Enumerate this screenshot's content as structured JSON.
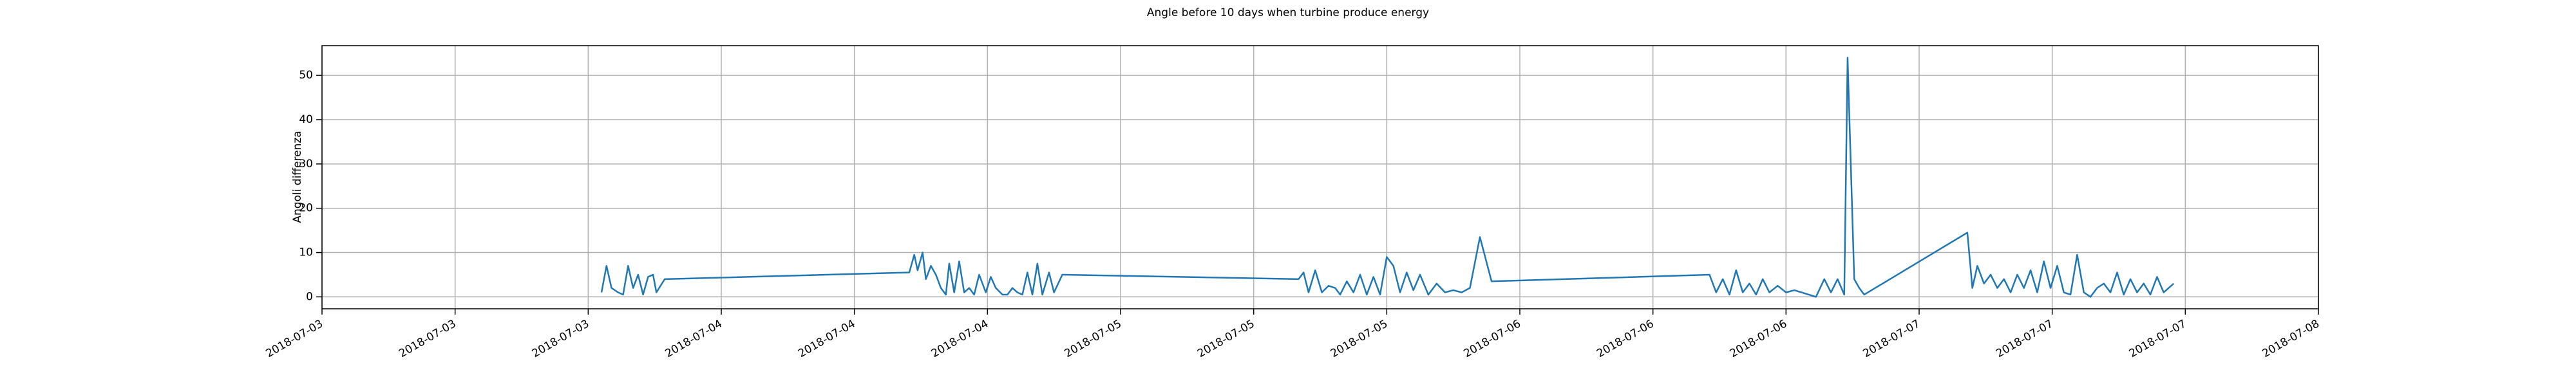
{
  "chart_data": {
    "type": "line",
    "title": "Angle before 10 days when turbine produce energy",
    "y_label": "Angoli differenza",
    "color": "#1f77b4",
    "grid": true,
    "xlim": [
      0,
      120
    ],
    "xticks": [
      {
        "value": 0,
        "label": "2018-07-03"
      },
      {
        "value": 8,
        "label": "2018-07-03"
      },
      {
        "value": 16,
        "label": "2018-07-03"
      },
      {
        "value": 24,
        "label": "2018-07-04"
      },
      {
        "value": 32,
        "label": "2018-07-04"
      },
      {
        "value": 40,
        "label": "2018-07-04"
      },
      {
        "value": 48,
        "label": "2018-07-05"
      },
      {
        "value": 56,
        "label": "2018-07-05"
      },
      {
        "value": 64,
        "label": "2018-07-05"
      },
      {
        "value": 72,
        "label": "2018-07-06"
      },
      {
        "value": 80,
        "label": "2018-07-06"
      },
      {
        "value": 88,
        "label": "2018-07-06"
      },
      {
        "value": 96,
        "label": "2018-07-07"
      },
      {
        "value": 104,
        "label": "2018-07-07"
      },
      {
        "value": 112,
        "label": "2018-07-07"
      },
      {
        "value": 120,
        "label": "2018-07-08"
      }
    ],
    "ylim": [
      -2.7,
      56.7
    ],
    "yticks": [
      0,
      10,
      20,
      30,
      40,
      50
    ],
    "x": [
      16.8,
      17.1,
      17.4,
      17.8,
      18.1,
      18.4,
      18.7,
      19.0,
      19.3,
      19.6,
      19.9,
      20.1,
      20.6,
      35.3,
      35.6,
      35.8,
      36.1,
      36.3,
      36.6,
      36.9,
      37.2,
      37.5,
      37.7,
      38.0,
      38.3,
      38.6,
      38.9,
      39.2,
      39.5,
      39.9,
      40.2,
      40.5,
      40.9,
      41.2,
      41.5,
      41.8,
      42.1,
      42.4,
      42.7,
      43.0,
      43.3,
      43.7,
      44.0,
      44.5,
      58.7,
      59.0,
      59.3,
      59.7,
      60.1,
      60.5,
      60.9,
      61.2,
      61.6,
      62.0,
      62.4,
      62.8,
      63.2,
      63.6,
      64.0,
      64.4,
      64.8,
      65.2,
      65.6,
      66.0,
      66.5,
      67.0,
      67.5,
      68.0,
      68.5,
      69.0,
      69.6,
      70.3,
      83.4,
      83.8,
      84.2,
      84.6,
      85.0,
      85.4,
      85.8,
      86.2,
      86.6,
      87.0,
      87.5,
      88.0,
      88.5,
      89.8,
      90.3,
      90.7,
      91.1,
      91.5,
      91.7,
      92.1,
      92.4,
      92.7,
      98.9,
      99.2,
      99.5,
      99.9,
      100.3,
      100.7,
      101.1,
      101.5,
      101.9,
      102.3,
      102.7,
      103.1,
      103.5,
      103.9,
      104.3,
      104.7,
      105.1,
      105.5,
      105.9,
      106.3,
      106.7,
      107.1,
      107.5,
      107.9,
      108.3,
      108.7,
      109.1,
      109.5,
      109.9,
      110.3,
      110.7,
      111.3
    ],
    "values": [
      1,
      7,
      2,
      1,
      0.5,
      7,
      2,
      5,
      0.5,
      4.5,
      5,
      1,
      4,
      5.5,
      9.5,
      6,
      10,
      4,
      7,
      5,
      2,
      0.5,
      7.5,
      1,
      8,
      1,
      2,
      0.5,
      5,
      1,
      4.5,
      2,
      0.5,
      0.5,
      2,
      1,
      0.5,
      5.5,
      0.5,
      7.5,
      0.5,
      5.5,
      1,
      5,
      4,
      5.5,
      1,
      6,
      1,
      2.5,
      2,
      0.5,
      3.5,
      1,
      5,
      0.5,
      4.5,
      0.5,
      9,
      7,
      1,
      5.5,
      1.5,
      5,
      0.5,
      3,
      1,
      1.5,
      1,
      2,
      13.5,
      3.5,
      5,
      1,
      4,
      0.5,
      6,
      1,
      3,
      0.5,
      4,
      1,
      2.5,
      1,
      1.5,
      0,
      4,
      1,
      4,
      0.5,
      54,
      4,
      2,
      0.5,
      14.5,
      2,
      7,
      3,
      5,
      2,
      4,
      1,
      5,
      2,
      6,
      1,
      8,
      2,
      7,
      1,
      0.5,
      9.5,
      1,
      0,
      2,
      3,
      1,
      5.5,
      0.5,
      4,
      1,
      3,
      0.5,
      4.5,
      1,
      3
    ]
  }
}
